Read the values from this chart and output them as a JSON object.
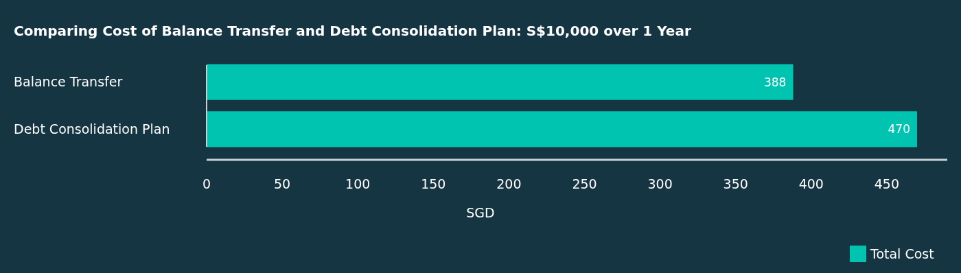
{
  "chart_data": {
    "type": "bar",
    "orientation": "horizontal",
    "title": "Comparing Cost of Balance Transfer and Debt Consolidation Plan: S$10,000 over 1 Year",
    "xlabel": "SGD",
    "categories": [
      "Balance Transfer",
      "Debt Consolidation Plan"
    ],
    "series": [
      {
        "name": "Total Cost",
        "color": "#00c4b0",
        "values": [
          388,
          470
        ]
      }
    ],
    "xlim": [
      0,
      490
    ],
    "xticks": [
      0,
      50,
      100,
      150,
      200,
      250,
      300,
      350,
      400,
      450
    ],
    "grid": false,
    "legend": "bottom right",
    "data_labels": true
  }
}
